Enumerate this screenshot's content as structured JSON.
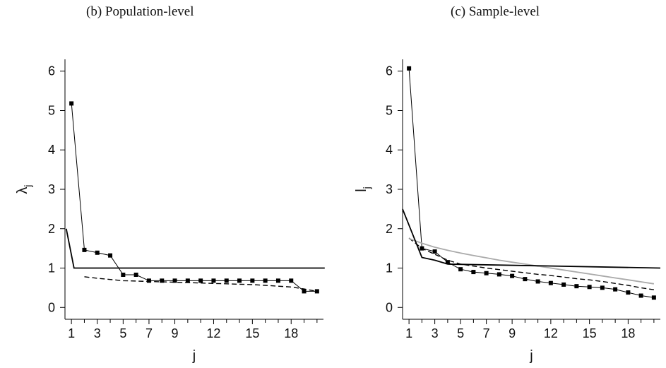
{
  "chart_data": [
    {
      "type": "line",
      "title": "(b) Population-level",
      "xlabel": "j",
      "ylabel": "λ",
      "ylabel_sub": "j",
      "xlim": [
        0.5,
        20.5
      ],
      "ylim": [
        -0.3,
        6.3
      ],
      "xticks": [
        1,
        3,
        5,
        7,
        9,
        12,
        15,
        18
      ],
      "yticks": [
        0,
        1,
        2,
        3,
        4,
        5,
        6
      ],
      "series": [
        {
          "style": "thin-solid-markers",
          "color": "#000000",
          "x": [
            1,
            2,
            3,
            4,
            5,
            6,
            7,
            8,
            9,
            10,
            11,
            12,
            13,
            14,
            15,
            16,
            17,
            18,
            19,
            20
          ],
          "y": [
            5.18,
            1.46,
            1.39,
            1.32,
            0.83,
            0.83,
            0.68,
            0.68,
            0.68,
            0.68,
            0.68,
            0.68,
            0.68,
            0.68,
            0.68,
            0.68,
            0.68,
            0.68,
            0.41,
            0.41
          ]
        },
        {
          "style": "dashed",
          "color": "#000000",
          "x": [
            2,
            3,
            4,
            5,
            6,
            7,
            8,
            9,
            10,
            11,
            12,
            13,
            14,
            15,
            16,
            17,
            18,
            19,
            20
          ],
          "y": [
            0.78,
            0.74,
            0.71,
            0.68,
            0.67,
            0.66,
            0.65,
            0.64,
            0.63,
            0.62,
            0.61,
            0.6,
            0.59,
            0.58,
            0.56,
            0.54,
            0.52,
            0.47,
            0.41
          ]
        },
        {
          "style": "thick-solid",
          "color": "#000000",
          "x": [
            0.6,
            1.2,
            20.6
          ],
          "y": [
            2.0,
            1.0,
            1.0
          ]
        }
      ]
    },
    {
      "type": "line",
      "title": "(c) Sample-level",
      "xlabel": "j",
      "ylabel": "l",
      "ylabel_sub": "j",
      "xlim": [
        0.5,
        20.5
      ],
      "ylim": [
        -0.3,
        6.3
      ],
      "xticks": [
        1,
        3,
        5,
        7,
        9,
        12,
        15,
        18
      ],
      "yticks": [
        0,
        1,
        2,
        3,
        4,
        5,
        6
      ],
      "series": [
        {
          "style": "thin-solid-markers",
          "color": "#000000",
          "x": [
            1,
            2,
            3,
            4,
            5,
            6,
            7,
            8,
            9,
            10,
            11,
            12,
            13,
            14,
            15,
            16,
            17,
            18,
            19,
            20
          ],
          "y": [
            6.07,
            1.5,
            1.42,
            1.15,
            0.97,
            0.9,
            0.87,
            0.84,
            0.8,
            0.72,
            0.66,
            0.62,
            0.58,
            0.54,
            0.52,
            0.5,
            0.46,
            0.38,
            0.3,
            0.25
          ]
        },
        {
          "style": "dashed",
          "color": "#000000",
          "x": [
            1,
            2,
            3,
            4,
            5,
            6,
            7,
            8,
            9,
            10,
            11,
            12,
            13,
            14,
            15,
            16,
            17,
            18,
            19,
            20
          ],
          "y": [
            1.76,
            1.5,
            1.35,
            1.2,
            1.1,
            1.05,
            1.0,
            0.96,
            0.92,
            0.88,
            0.84,
            0.81,
            0.77,
            0.73,
            0.7,
            0.66,
            0.61,
            0.56,
            0.5,
            0.45
          ]
        },
        {
          "style": "grey-solid",
          "color": "#aaaaaa",
          "x": [
            1,
            2,
            3,
            4,
            5,
            6,
            7,
            8,
            9,
            10,
            11,
            12,
            13,
            14,
            15,
            16,
            17,
            18,
            19,
            20
          ],
          "y": [
            1.75,
            1.63,
            1.53,
            1.45,
            1.38,
            1.32,
            1.26,
            1.2,
            1.15,
            1.1,
            1.05,
            1.0,
            0.95,
            0.9,
            0.85,
            0.8,
            0.75,
            0.7,
            0.65,
            0.6
          ]
        },
        {
          "style": "thick-solid",
          "color": "#000000",
          "x": [
            0.5,
            2,
            3,
            4,
            20.5
          ],
          "y": [
            2.5,
            1.27,
            1.2,
            1.1,
            1.0
          ]
        }
      ]
    }
  ]
}
